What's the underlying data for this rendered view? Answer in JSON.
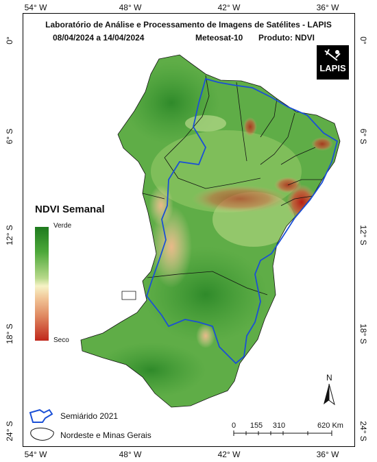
{
  "title": "Laboratório de Análise e Processamento de Imagens de Satélites - LAPIS",
  "period": "08/04/2024  a  14/04/2024",
  "satellite": "Meteosat-10",
  "product": "Produto: NDVI",
  "logo_text": "LAPIS",
  "axes": {
    "top": [
      "54° W",
      "48° W",
      "42° W",
      "36° W"
    ],
    "bottom": [
      "54° W",
      "48° W",
      "42° W",
      "36° W"
    ],
    "left": [
      "0°",
      "6° S",
      "12° S",
      "18° S",
      "24° S"
    ],
    "right": [
      "0°",
      "6° S",
      "12° S",
      "18° S",
      "24° S"
    ]
  },
  "legend": {
    "title": "NDVI Semanal",
    "high_label": "Verde",
    "low_label": "Seco",
    "ramp_colors": [
      "#1e7a1e",
      "#4da83a",
      "#b7d98a",
      "#f6f3c6",
      "#f2c89a",
      "#e08a62",
      "#c0271b"
    ],
    "items": [
      {
        "label": "Semiárido 2021",
        "icon": "blue-outline-icon"
      },
      {
        "label": "Nordeste e Minas Gerais",
        "icon": "black-outline-icon"
      }
    ]
  },
  "north_label": "N",
  "scale": {
    "labels": [
      "0",
      "155",
      "310",
      "620 Km"
    ]
  },
  "colors": {
    "semiarid_line": "#1a4fd6",
    "boundary_line": "#111111",
    "vegetation": "#5aa844"
  }
}
